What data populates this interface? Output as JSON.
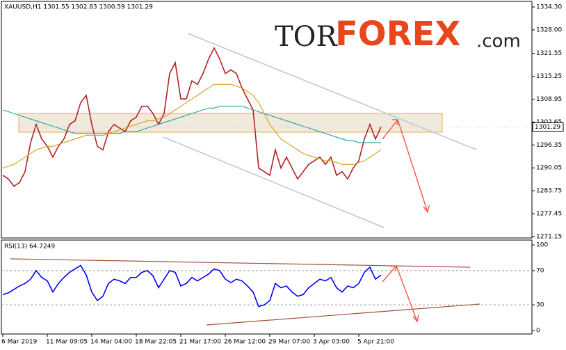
{
  "chart_data": [
    {
      "type": "line",
      "title": "XAUUSD,H1  1301.55 1302.83 1300.59 1301.29",
      "watermark": [
        "TOR",
        "FOREX",
        ".com"
      ],
      "categories": [
        "6 Mar 2019",
        null,
        null,
        null,
        null,
        null,
        null,
        null,
        "11 Mar 09:05",
        null,
        null,
        null,
        null,
        null,
        null,
        null,
        "14 Mar 04:00",
        null,
        null,
        null,
        null,
        null,
        null,
        null,
        "18 Mar 22:05",
        null,
        null,
        null,
        null,
        null,
        null,
        null,
        "21 Mar 17:00",
        null,
        null,
        null,
        null,
        null,
        null,
        null,
        "26 Mar 12:00",
        null,
        null,
        null,
        null,
        null,
        null,
        null,
        "29 Mar 07:00",
        null,
        null,
        null,
        null,
        null,
        null,
        null,
        "3 Apr 03:00",
        null,
        null,
        null,
        null,
        null,
        null,
        null,
        "5 Apr 21:00",
        null,
        null,
        null,
        null
      ],
      "series": [
        {
          "color": "#b22222",
          "values": [
            1288,
            1287,
            1285,
            1286,
            1289,
            1297,
            1302,
            1298,
            1296,
            1293,
            1296,
            1298,
            1302,
            1303,
            1308,
            1310,
            1302,
            1296,
            1295,
            1300,
            1302,
            1301,
            1300,
            1303,
            1304,
            1307,
            1307,
            1305,
            1302,
            1305,
            1316,
            1319,
            1309,
            1309,
            1314,
            1313,
            1316,
            1320,
            1323,
            1320,
            1316,
            1317,
            1316,
            1312,
            1309,
            1306,
            1290,
            1289,
            1288,
            1295,
            1290,
            1293,
            1290,
            1287,
            1289,
            1291,
            1292,
            1293,
            1291,
            1293,
            1288,
            1289,
            1287,
            1290,
            1292,
            1298,
            1302,
            1298,
            1301.29
          ]
        },
        {
          "color": "#20a0a0",
          "values": [
            1306,
            1305.5,
            1305,
            1304.5,
            1304,
            1303.5,
            1303,
            1302.5,
            1302,
            1301.5,
            1301,
            1300.5,
            1300,
            1299.5,
            1299.5,
            1299.5,
            1299.5,
            1299.5,
            1299.5,
            1299.5,
            1299.5,
            1299.5,
            1300,
            1300,
            1300,
            1300.5,
            1301,
            1301.5,
            1302,
            1302.5,
            1303,
            1303.5,
            1304,
            1304.5,
            1305,
            1305.5,
            1306,
            1306.5,
            1306.5,
            1307,
            1307,
            1307,
            1307,
            1307,
            1306.5,
            1306,
            1305.5,
            1305,
            1304.5,
            1304,
            1303.5,
            1303,
            1302.5,
            1302,
            1301.5,
            1301,
            1300.5,
            1300,
            1299.5,
            1299,
            1298.5,
            1298,
            1297.5,
            1297.5,
            1297,
            1297,
            1297,
            1297,
            1297
          ]
        },
        {
          "color": "#d4a017",
          "values": [
            1290,
            1290.5,
            1291,
            1292,
            1293,
            1294,
            1295,
            1295.5,
            1296,
            1296,
            1296.5,
            1297,
            1297.5,
            1298,
            1298.5,
            1299,
            1299,
            1299,
            1299,
            1299.5,
            1300,
            1300.5,
            1301,
            1301.5,
            1302,
            1302.5,
            1303,
            1303,
            1303.5,
            1304,
            1305,
            1306,
            1307,
            1308,
            1309,
            1310,
            1311,
            1312,
            1313,
            1313,
            1313,
            1313,
            1312.5,
            1312,
            1311,
            1310,
            1308,
            1305,
            1302,
            1300,
            1298,
            1297,
            1296,
            1295,
            1294,
            1293.5,
            1293,
            1292.5,
            1292,
            1292,
            1291.5,
            1291,
            1291,
            1291,
            1291.5,
            1292,
            1293,
            1294,
            1295
          ]
        }
      ],
      "last_price": 1301.29,
      "ylim": [
        1270.77,
        1335.83
      ],
      "yticks": [
        {
          "value": 1334.3,
          "label": "1334.30"
        },
        {
          "value": 1328,
          "label": "1328.00"
        },
        {
          "value": 1321.55,
          "label": "1321.55"
        },
        {
          "value": 1315.25,
          "label": "1315.25"
        },
        {
          "value": 1308.95,
          "label": "1308.95"
        },
        {
          "value": 1302.65,
          "label": "1302.65"
        },
        {
          "value": 1296.35,
          "label": "1296.35"
        },
        {
          "value": 1290.05,
          "label": "1290.05"
        },
        {
          "value": 1283.75,
          "label": "1283.75"
        },
        {
          "value": 1277.45,
          "label": "1277.45"
        },
        {
          "value": 1271.15,
          "label": "1271.15"
        }
      ]
    },
    {
      "type": "line",
      "title": "RSI(13) 64.7249",
      "series": [
        {
          "color": "#0000ff",
          "values": [
            42,
            44,
            48,
            52,
            55,
            60,
            70,
            62,
            58,
            45,
            55,
            62,
            68,
            72,
            76,
            65,
            45,
            35,
            40,
            55,
            60,
            58,
            55,
            62,
            62,
            68,
            70,
            64,
            50,
            60,
            70,
            68,
            52,
            55,
            62,
            58,
            62,
            66,
            72,
            70,
            60,
            56,
            60,
            58,
            52,
            45,
            28,
            30,
            35,
            55,
            50,
            52,
            45,
            40,
            42,
            50,
            55,
            60,
            58,
            62,
            50,
            45,
            52,
            50,
            55,
            68,
            74,
            60,
            64.7249
          ]
        }
      ],
      "ylim": [
        -4.07,
        105.7
      ],
      "yticks": [
        100,
        70,
        30,
        0
      ]
    }
  ]
}
